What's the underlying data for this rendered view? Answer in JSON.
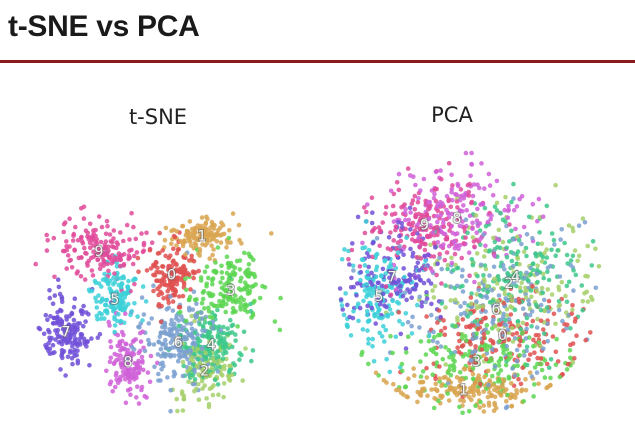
{
  "slide": {
    "title": "t-SNE vs PCA"
  },
  "chart_data": [
    {
      "type": "scatter",
      "title": "t-SNE",
      "xlabel": "",
      "ylabel": "",
      "clusters": [
        {
          "label": "0",
          "color": "#e05050",
          "x": 0.05,
          "y": 0.12,
          "sx": 0.09,
          "sy": 0.12,
          "n": 140
        },
        {
          "label": "1",
          "color": "#d9a550",
          "x": 0.28,
          "y": 0.42,
          "sx": 0.14,
          "sy": 0.07,
          "n": 130
        },
        {
          "label": "2",
          "color": "#a6d06a",
          "x": 0.3,
          "y": -0.62,
          "sx": 0.1,
          "sy": 0.12,
          "n": 130
        },
        {
          "label": "3",
          "color": "#5cd650",
          "x": 0.5,
          "y": 0.0,
          "sx": 0.15,
          "sy": 0.15,
          "n": 170
        },
        {
          "label": "4",
          "color": "#3cc88a",
          "x": 0.35,
          "y": -0.42,
          "sx": 0.12,
          "sy": 0.13,
          "n": 160
        },
        {
          "label": "5",
          "color": "#3cd0d8",
          "x": -0.38,
          "y": -0.07,
          "sx": 0.09,
          "sy": 0.12,
          "n": 130
        },
        {
          "label": "6",
          "color": "#7aa0d0",
          "x": 0.1,
          "y": -0.4,
          "sx": 0.14,
          "sy": 0.18,
          "n": 190
        },
        {
          "label": "7",
          "color": "#7050d8",
          "x": -0.75,
          "y": -0.32,
          "sx": 0.11,
          "sy": 0.14,
          "n": 150
        },
        {
          "label": "8",
          "color": "#d060d8",
          "x": -0.28,
          "y": -0.55,
          "sx": 0.08,
          "sy": 0.14,
          "n": 130
        },
        {
          "label": "9",
          "color": "#e04a9a",
          "x": -0.5,
          "y": 0.3,
          "sx": 0.17,
          "sy": 0.12,
          "n": 170
        }
      ]
    },
    {
      "type": "scatter",
      "title": "PCA",
      "xlabel": "",
      "ylabel": "",
      "clusters": [
        {
          "label": "0",
          "color": "#e05050",
          "x": 0.25,
          "y": -0.4,
          "sx": 0.3,
          "sy": 0.18,
          "n": 180
        },
        {
          "label": "1",
          "color": "#d9a550",
          "x": -0.05,
          "y": -0.82,
          "sx": 0.28,
          "sy": 0.08,
          "n": 170
        },
        {
          "label": "2",
          "color": "#a6d06a",
          "x": 0.3,
          "y": 0.0,
          "sx": 0.3,
          "sy": 0.28,
          "n": 170
        },
        {
          "label": "3",
          "color": "#5cd650",
          "x": 0.05,
          "y": -0.6,
          "sx": 0.33,
          "sy": 0.14,
          "n": 170
        },
        {
          "label": "4",
          "color": "#3cc88a",
          "x": 0.35,
          "y": 0.05,
          "sx": 0.28,
          "sy": 0.28,
          "n": 170
        },
        {
          "label": "5",
          "color": "#3cd0d8",
          "x": -0.7,
          "y": -0.1,
          "sx": 0.14,
          "sy": 0.22,
          "n": 150
        },
        {
          "label": "6",
          "color": "#7aa0d0",
          "x": 0.2,
          "y": -0.2,
          "sx": 0.32,
          "sy": 0.28,
          "n": 180
        },
        {
          "label": "7",
          "color": "#7050d8",
          "x": -0.6,
          "y": 0.05,
          "sx": 0.18,
          "sy": 0.22,
          "n": 150
        },
        {
          "label": "8",
          "color": "#d060d8",
          "x": -0.1,
          "y": 0.5,
          "sx": 0.28,
          "sy": 0.2,
          "n": 180
        },
        {
          "label": "9",
          "color": "#e04a9a",
          "x": -0.35,
          "y": 0.45,
          "sx": 0.22,
          "sy": 0.18,
          "n": 180
        }
      ]
    }
  ]
}
